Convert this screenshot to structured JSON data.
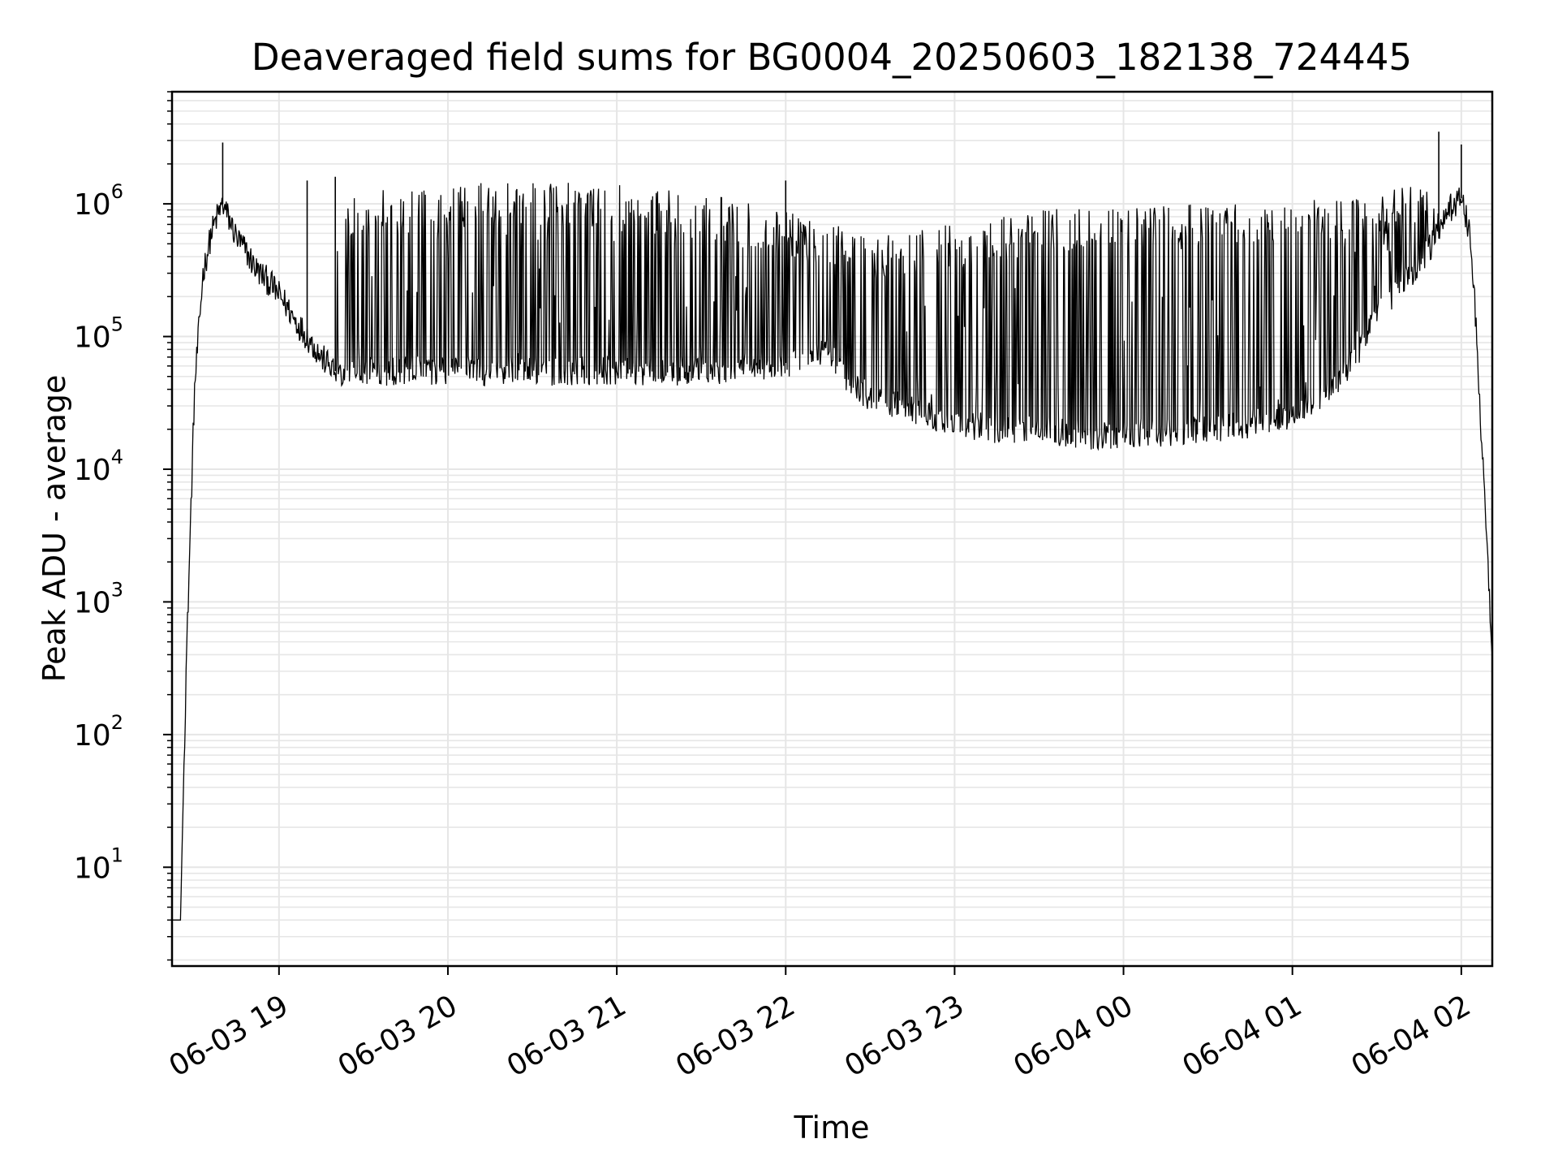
{
  "chart_data": {
    "type": "line",
    "title": "Deaveraged field sums for BG0004_20250603_182138_724445",
    "xlabel": "Time",
    "ylabel": "Peak ADU - average",
    "yscale": "log",
    "grid": true,
    "legend": "none",
    "line_color": "#000000",
    "grid_color": "#e6e6e6",
    "xlim": [
      "2025-06-03 18:22",
      "2025-06-04 02:11"
    ],
    "ylim": [
      1.8,
      7000000
    ],
    "x_ticks": [
      {
        "value": "2025-06-03 19:00",
        "label": "06-03 19"
      },
      {
        "value": "2025-06-03 20:00",
        "label": "06-03 20"
      },
      {
        "value": "2025-06-03 21:00",
        "label": "06-03 21"
      },
      {
        "value": "2025-06-03 22:00",
        "label": "06-03 22"
      },
      {
        "value": "2025-06-03 23:00",
        "label": "06-03 23"
      },
      {
        "value": "2025-06-04 00:00",
        "label": "06-04 00"
      },
      {
        "value": "2025-06-04 01:00",
        "label": "06-04 01"
      },
      {
        "value": "2025-06-04 02:00",
        "label": "06-04 02"
      }
    ],
    "y_ticks": [
      {
        "value": 10,
        "base": "10",
        "exp": "1"
      },
      {
        "value": 100,
        "base": "10",
        "exp": "2"
      },
      {
        "value": 1000,
        "base": "10",
        "exp": "3"
      },
      {
        "value": 10000,
        "base": "10",
        "exp": "4"
      },
      {
        "value": 100000,
        "base": "10",
        "exp": "5"
      },
      {
        "value": 1000000,
        "base": "10",
        "exp": "6"
      }
    ],
    "series": [
      {
        "baseline": {
          "x": [
            "2025-06-03 18:22",
            "2025-06-03 18:24",
            "2025-06-03 18:25",
            "2025-06-03 18:27",
            "2025-06-03 18:30",
            "2025-06-03 18:33",
            "2025-06-03 18:36",
            "2025-06-03 18:38",
            "2025-06-03 18:40",
            "2025-06-03 18:43",
            "2025-06-03 18:45",
            "2025-06-03 18:48",
            "2025-06-03 18:52",
            "2025-06-03 18:57",
            "2025-06-03 19:02",
            "2025-06-03 19:06",
            "2025-06-03 19:10",
            "2025-06-03 19:15",
            "2025-06-03 19:20",
            "2025-06-03 19:30",
            "2025-06-03 19:45",
            "2025-06-03 20:00",
            "2025-06-03 20:30",
            "2025-06-03 21:00",
            "2025-06-03 21:30",
            "2025-06-03 21:50",
            "2025-06-03 22:05",
            "2025-06-03 22:15",
            "2025-06-03 22:20",
            "2025-06-03 22:30",
            "2025-06-03 22:45",
            "2025-06-03 23:00",
            "2025-06-03 23:15",
            "2025-06-03 23:30",
            "2025-06-03 23:50",
            "2025-06-04 00:15",
            "2025-06-04 00:30",
            "2025-06-04 00:45",
            "2025-06-04 01:00",
            "2025-06-04 01:15",
            "2025-06-04 01:20",
            "2025-06-04 01:25",
            "2025-06-04 01:35",
            "2025-06-04 01:45",
            "2025-06-04 01:52",
            "2025-06-04 01:57",
            "2025-06-04 02:00",
            "2025-06-04 02:03",
            "2025-06-04 02:05",
            "2025-06-04 02:07",
            "2025-06-04 02:09",
            "2025-06-04 02:11"
          ],
          "y": [
            4,
            4,
            4,
            300,
            40000,
            300000,
            600000,
            800000,
            1000000,
            700000,
            550000,
            450000,
            320000,
            250000,
            180000,
            130000,
            100000,
            70000,
            55000,
            55000,
            55000,
            55000,
            55000,
            55000,
            55000,
            60000,
            65000,
            80000,
            50000,
            35000,
            28000,
            22000,
            20000,
            20000,
            18000,
            19000,
            20000,
            22000,
            25000,
            40000,
            60000,
            90000,
            200000,
            350000,
            600000,
            1000000,
            1100000,
            600000,
            150000,
            20000,
            3000,
            400
          ]
        },
        "spike_band": {
          "start": "2025-06-03 19:20",
          "end": "2025-06-04 01:52",
          "peaks": [
            {
              "x": "2025-06-03 19:20",
              "y": 1200000
            },
            {
              "x": "2025-06-03 20:00",
              "y": 1400000
            },
            {
              "x": "2025-06-03 20:30",
              "y": 1500000
            },
            {
              "x": "2025-06-03 21:00",
              "y": 1400000
            },
            {
              "x": "2025-06-03 21:30",
              "y": 1200000
            },
            {
              "x": "2025-06-03 22:00",
              "y": 900000
            },
            {
              "x": "2025-06-03 22:30",
              "y": 600000
            },
            {
              "x": "2025-06-03 23:00",
              "y": 700000
            },
            {
              "x": "2025-06-03 23:30",
              "y": 900000
            },
            {
              "x": "2025-06-04 00:00",
              "y": 1000000
            },
            {
              "x": "2025-06-04 00:30",
              "y": 1000000
            },
            {
              "x": "2025-06-04 01:00",
              "y": 1000000
            },
            {
              "x": "2025-06-04 01:30",
              "y": 1300000
            },
            {
              "x": "2025-06-04 01:52",
              "y": 1400000
            }
          ]
        },
        "peaks": [
          {
            "x": "2025-06-03 18:40",
            "y": 2900000
          },
          {
            "x": "2025-06-04 01:52",
            "y": 3500000
          },
          {
            "x": "2025-06-04 02:00",
            "y": 2800000
          },
          {
            "x": "2025-06-03 19:10",
            "y": 1500000
          },
          {
            "x": "2025-06-03 19:20",
            "y": 1600000
          },
          {
            "x": "2025-06-03 22:00",
            "y": 1500000
          }
        ]
      }
    ]
  }
}
